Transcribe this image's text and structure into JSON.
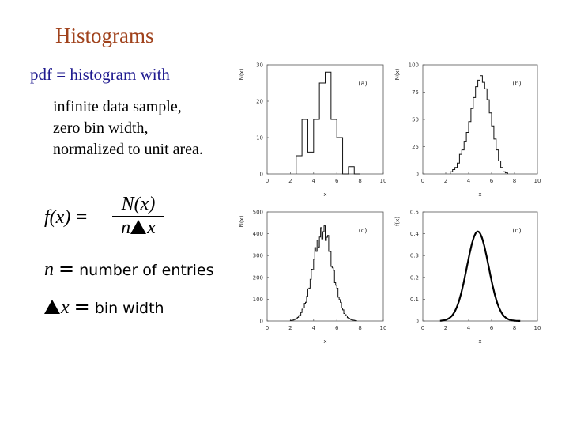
{
  "slide": {
    "title": "Histograms",
    "intro": "pdf = histogram with",
    "bullets": [
      "infinite data sample,",
      "zero bin width,",
      "normalized to unit area."
    ],
    "formula": {
      "lhs": "f(x) =",
      "numerator": "N(x)",
      "den_n": "n",
      "den_x": "x"
    },
    "definitions": [
      {
        "symbol": "n",
        "text": "number of entries"
      },
      {
        "symbol": "x",
        "text": "bin width"
      }
    ]
  },
  "chart_data": [
    {
      "type": "bar",
      "panel": "(a)",
      "ylabel": "N(x)",
      "xlabel": "x",
      "xlim": [
        0,
        10
      ],
      "ylim": [
        0,
        30
      ],
      "yticks": [
        0,
        10,
        20,
        30
      ],
      "xticks": [
        0,
        2,
        4,
        6,
        8,
        10
      ],
      "bin_width": 0.5,
      "bins_x": [
        2.5,
        3.0,
        3.5,
        4.0,
        4.5,
        5.0,
        5.5,
        6.0,
        6.5,
        7.0,
        7.5
      ],
      "values": [
        5,
        15,
        6,
        15,
        25,
        28,
        15,
        10,
        0,
        2,
        0
      ]
    },
    {
      "type": "bar",
      "panel": "(b)",
      "ylabel": "N(x)",
      "xlabel": "x",
      "xlim": [
        0,
        10
      ],
      "ylim": [
        0,
        100
      ],
      "yticks": [
        0,
        25,
        50,
        75,
        100
      ],
      "xticks": [
        0,
        2,
        4,
        6,
        8,
        10
      ],
      "bin_width": 0.2,
      "values_by_bin_start": [
        [
          2.4,
          2
        ],
        [
          2.6,
          4
        ],
        [
          2.8,
          6
        ],
        [
          3.0,
          10
        ],
        [
          3.2,
          18
        ],
        [
          3.4,
          22
        ],
        [
          3.6,
          30
        ],
        [
          3.8,
          38
        ],
        [
          4.0,
          48
        ],
        [
          4.2,
          60
        ],
        [
          4.4,
          70
        ],
        [
          4.6,
          80
        ],
        [
          4.8,
          86
        ],
        [
          5.0,
          90
        ],
        [
          5.2,
          84
        ],
        [
          5.4,
          78
        ],
        [
          5.6,
          68
        ],
        [
          5.8,
          56
        ],
        [
          6.0,
          44
        ],
        [
          6.2,
          32
        ],
        [
          6.4,
          22
        ],
        [
          6.6,
          12
        ],
        [
          6.8,
          6
        ],
        [
          7.0,
          2
        ],
        [
          7.2,
          1
        ]
      ]
    },
    {
      "type": "bar",
      "panel": "(c)",
      "ylabel": "N(x)",
      "xlabel": "x",
      "xlim": [
        0,
        10
      ],
      "ylim": [
        0,
        500
      ],
      "yticks": [
        0,
        100,
        200,
        300,
        400,
        500
      ],
      "xticks": [
        0,
        2,
        4,
        6,
        8,
        10
      ],
      "gaussian": {
        "amplitude": 410,
        "mean": 4.8,
        "sigma": 0.85,
        "bin_width": 0.1
      }
    },
    {
      "type": "line",
      "panel": "(d)",
      "ylabel": "f(x)",
      "xlabel": "x",
      "xlim": [
        0,
        10
      ],
      "ylim": [
        0,
        0.5
      ],
      "yticks": [
        0,
        0.1,
        0.2,
        0.3,
        0.4,
        0.5
      ],
      "xticks": [
        0,
        2,
        4,
        6,
        8,
        10
      ],
      "gaussian": {
        "amplitude": 0.41,
        "mean": 4.8,
        "sigma": 0.95
      }
    }
  ]
}
